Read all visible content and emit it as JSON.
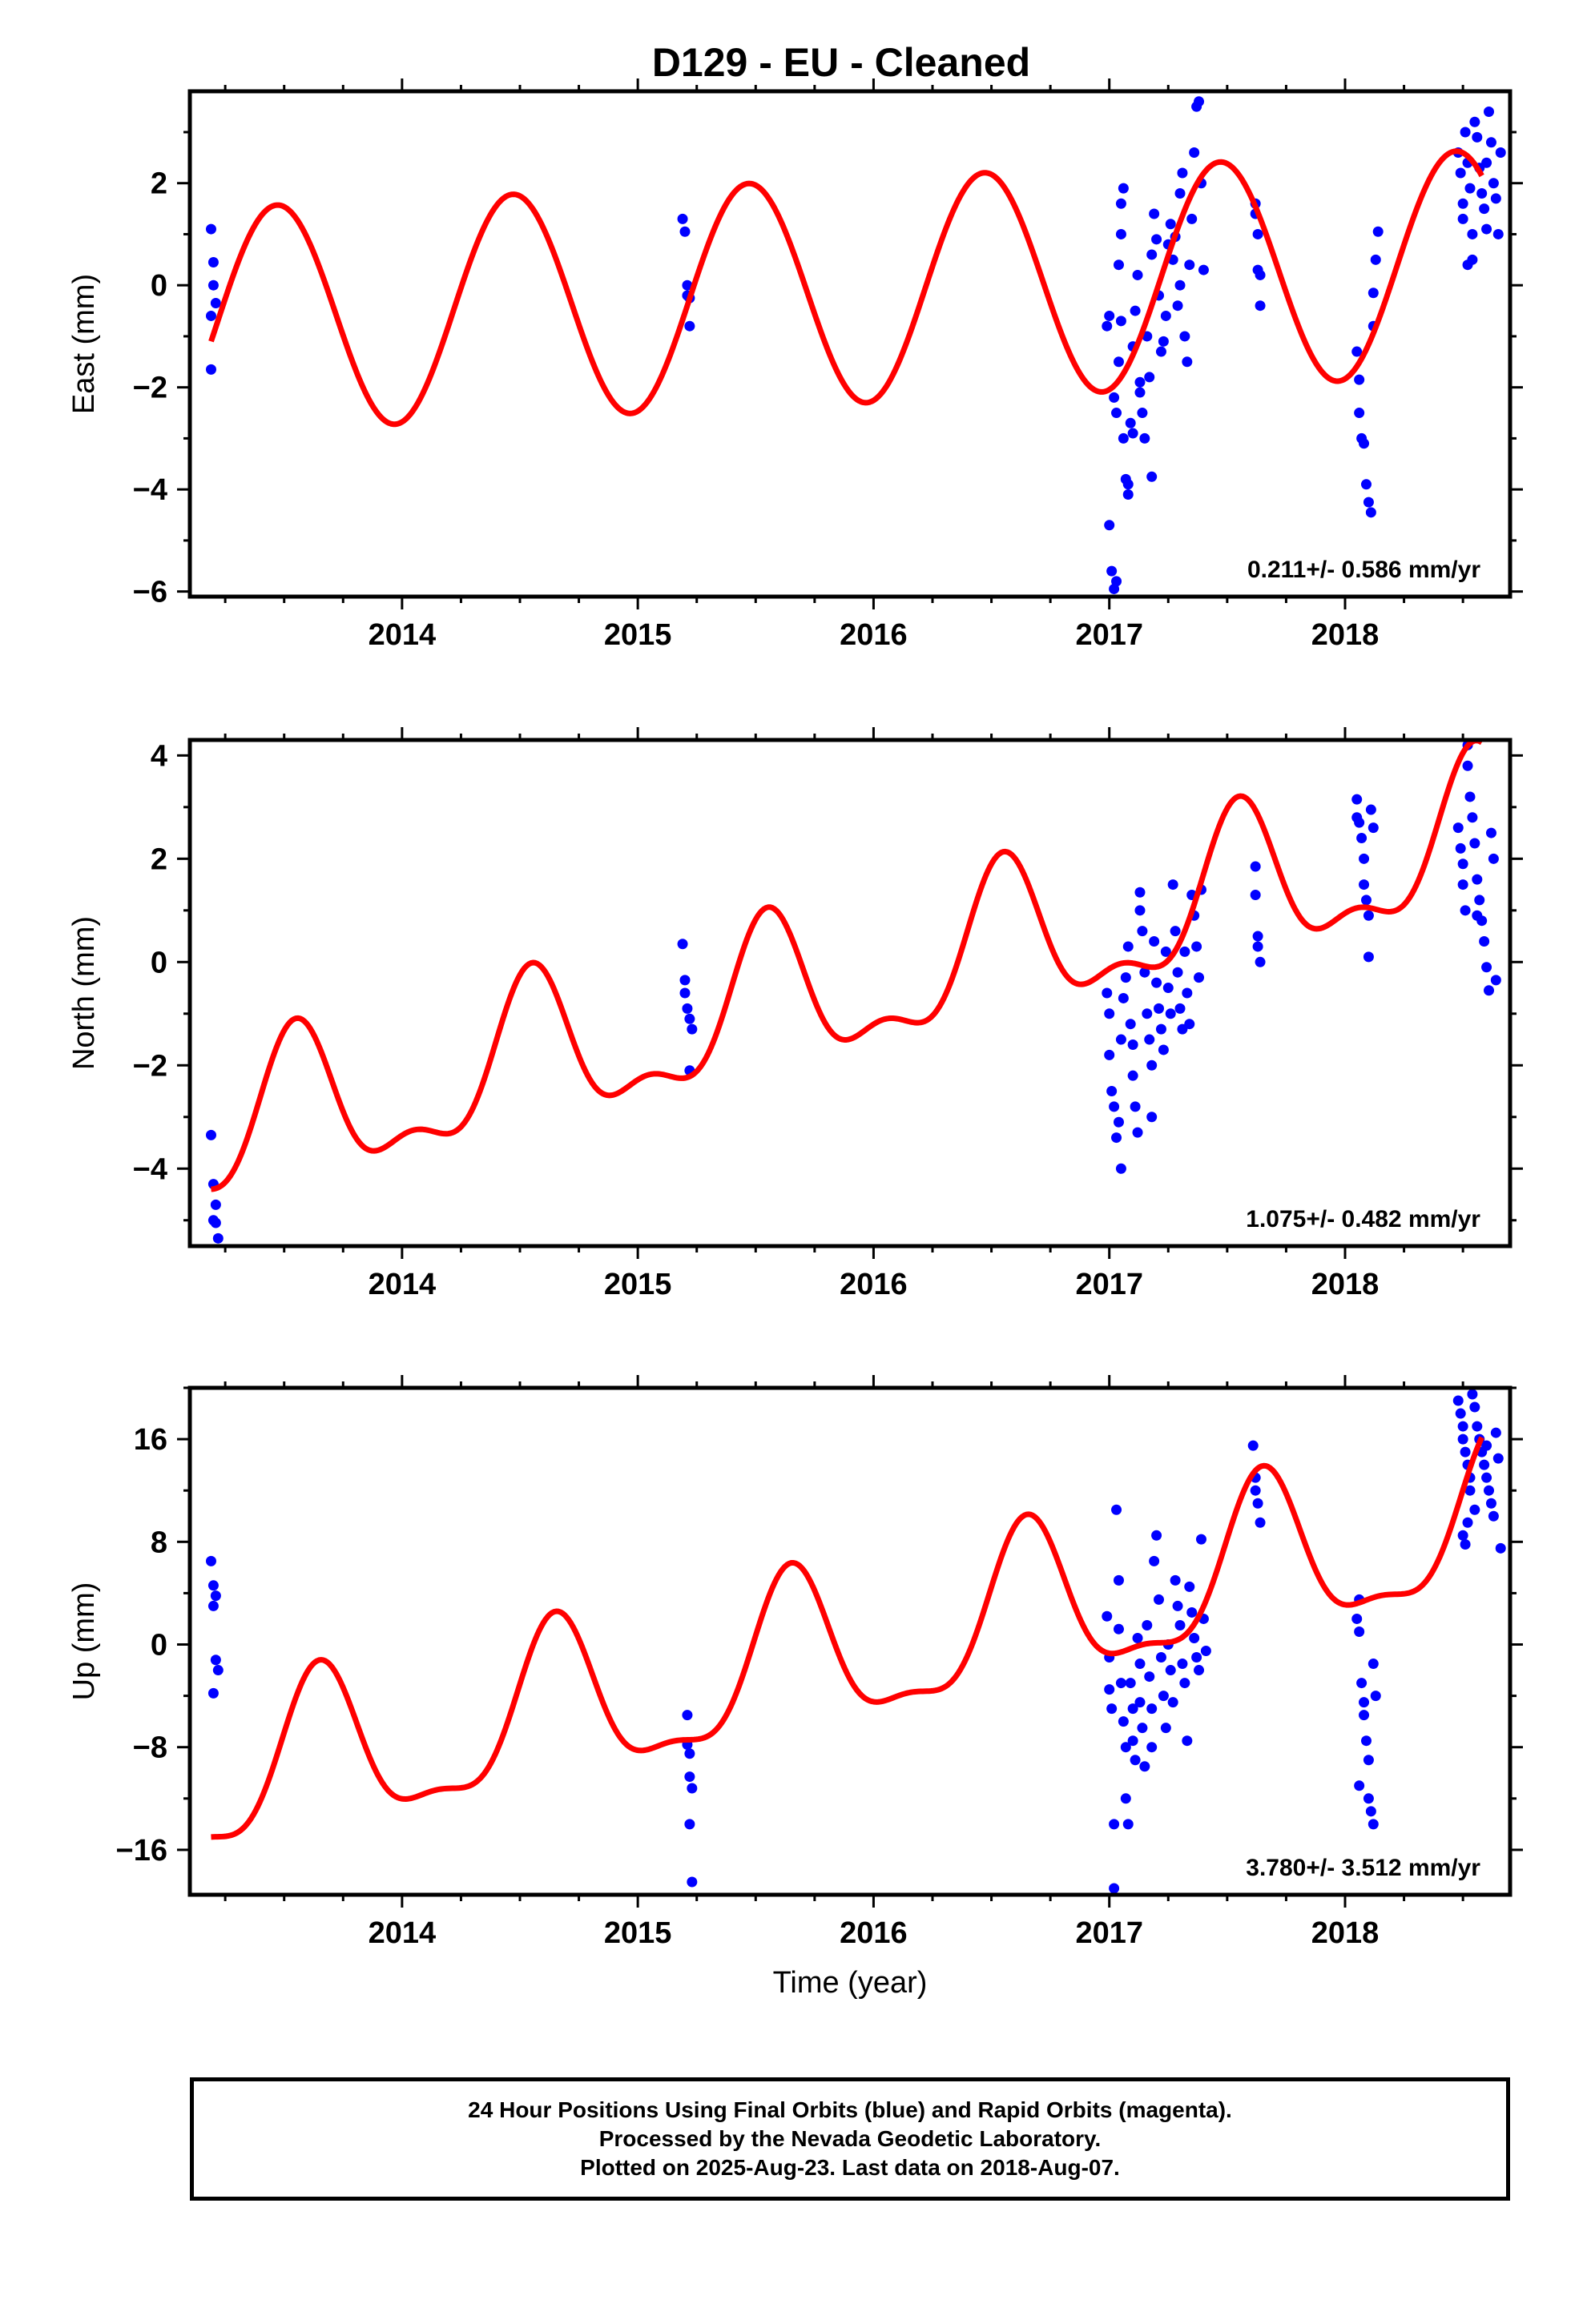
{
  "title": "D129  - EU - Cleaned",
  "xlabel": "Time (year)",
  "colors": {
    "final_orbits": "#0000ff",
    "model": "#ff0000",
    "axes": "#000000"
  },
  "footer": {
    "line1": "24 Hour Positions Using Final Orbits (blue) and Rapid Orbits (magenta).",
    "line2": "Processed by the Nevada Geodetic Laboratory.",
    "line3": "Plotted on 2025-Aug-23. Last data on 2018-Aug-07."
  },
  "chart_data": [
    {
      "type": "scatter",
      "name": "east",
      "ylabel": "East (mm)",
      "rate_label": "0.211+/- 0.586 mm/yr",
      "xlim": [
        2013.1,
        2018.7
      ],
      "ylim": [
        -6.1,
        3.8
      ],
      "xticks": [
        2014,
        2015,
        2016,
        2017,
        2018
      ],
      "yticks": [
        -6,
        -4,
        -2,
        0,
        2
      ],
      "model": {
        "t0": 2013.19,
        "y0": -1.1,
        "rate": 0.211,
        "annual_amp": 2.2,
        "annual_peak": 0.47,
        "semi_amp": 0.0,
        "semi_peak": 0.0,
        "extent": [
          2013.19,
          2018.58
        ]
      },
      "points": [
        [
          2013.19,
          1.1
        ],
        [
          2013.2,
          0.45
        ],
        [
          2013.2,
          0.0
        ],
        [
          2013.21,
          -0.35
        ],
        [
          2013.19,
          -0.6
        ],
        [
          2013.19,
          -1.65
        ],
        [
          2015.19,
          1.3
        ],
        [
          2015.2,
          1.05
        ],
        [
          2015.21,
          0.0
        ],
        [
          2015.21,
          -0.2
        ],
        [
          2015.22,
          -0.25
        ],
        [
          2015.22,
          -0.8
        ],
        [
          2016.99,
          -0.8
        ],
        [
          2017.0,
          -0.6
        ],
        [
          2017.0,
          -4.7
        ],
        [
          2017.01,
          -5.6
        ],
        [
          2017.02,
          -5.95
        ],
        [
          2017.03,
          -5.8
        ],
        [
          2017.02,
          -2.2
        ],
        [
          2017.03,
          -2.5
        ],
        [
          2017.04,
          -1.5
        ],
        [
          2017.05,
          -0.7
        ],
        [
          2017.04,
          0.4
        ],
        [
          2017.05,
          1.0
        ],
        [
          2017.05,
          1.6
        ],
        [
          2017.06,
          1.9
        ],
        [
          2017.06,
          -3.0
        ],
        [
          2017.07,
          -3.8
        ],
        [
          2017.08,
          -4.1
        ],
        [
          2017.08,
          -3.9
        ],
        [
          2017.09,
          -2.7
        ],
        [
          2017.1,
          -2.9
        ],
        [
          2017.1,
          -1.2
        ],
        [
          2017.11,
          -0.5
        ],
        [
          2017.12,
          0.2
        ],
        [
          2017.13,
          -1.9
        ],
        [
          2017.13,
          -2.1
        ],
        [
          2017.14,
          -2.5
        ],
        [
          2017.15,
          -3.0
        ],
        [
          2017.16,
          -1.0
        ],
        [
          2017.17,
          -1.8
        ],
        [
          2017.18,
          -3.75
        ],
        [
          2017.18,
          0.6
        ],
        [
          2017.19,
          1.4
        ],
        [
          2017.2,
          0.9
        ],
        [
          2017.21,
          -0.2
        ],
        [
          2017.22,
          -1.3
        ],
        [
          2017.23,
          -1.1
        ],
        [
          2017.24,
          -0.6
        ],
        [
          2017.25,
          0.8
        ],
        [
          2017.26,
          1.2
        ],
        [
          2017.27,
          0.5
        ],
        [
          2017.28,
          0.95
        ],
        [
          2017.29,
          -0.4
        ],
        [
          2017.3,
          0.0
        ],
        [
          2017.3,
          1.8
        ],
        [
          2017.31,
          2.2
        ],
        [
          2017.32,
          -1.0
        ],
        [
          2017.33,
          -1.5
        ],
        [
          2017.34,
          0.4
        ],
        [
          2017.35,
          1.3
        ],
        [
          2017.36,
          2.6
        ],
        [
          2017.37,
          3.5
        ],
        [
          2017.38,
          3.6
        ],
        [
          2017.39,
          2.0
        ],
        [
          2017.4,
          0.3
        ],
        [
          2017.62,
          1.6
        ],
        [
          2017.62,
          1.4
        ],
        [
          2017.63,
          1.0
        ],
        [
          2017.63,
          0.3
        ],
        [
          2017.64,
          0.2
        ],
        [
          2017.64,
          -0.4
        ],
        [
          2018.05,
          -1.3
        ],
        [
          2018.06,
          -1.85
        ],
        [
          2018.06,
          -2.5
        ],
        [
          2018.07,
          -3.0
        ],
        [
          2018.08,
          -3.1
        ],
        [
          2018.09,
          -3.9
        ],
        [
          2018.1,
          -4.25
        ],
        [
          2018.11,
          -4.45
        ],
        [
          2018.12,
          -0.8
        ],
        [
          2018.12,
          -0.15
        ],
        [
          2018.13,
          0.5
        ],
        [
          2018.14,
          1.05
        ],
        [
          2018.48,
          2.6
        ],
        [
          2018.49,
          2.2
        ],
        [
          2018.5,
          1.6
        ],
        [
          2018.5,
          1.3
        ],
        [
          2018.51,
          3.0
        ],
        [
          2018.52,
          2.4
        ],
        [
          2018.53,
          1.9
        ],
        [
          2018.54,
          1.0
        ],
        [
          2018.54,
          0.5
        ],
        [
          2018.55,
          3.2
        ],
        [
          2018.56,
          2.9
        ],
        [
          2018.57,
          2.3
        ],
        [
          2018.58,
          1.8
        ],
        [
          2018.59,
          1.5
        ],
        [
          2018.6,
          1.1
        ],
        [
          2018.61,
          3.4
        ],
        [
          2018.62,
          2.8
        ],
        [
          2018.63,
          2.0
        ],
        [
          2018.64,
          1.7
        ],
        [
          2018.65,
          1.0
        ],
        [
          2018.66,
          2.6
        ],
        [
          2018.52,
          0.4
        ],
        [
          2018.6,
          2.4
        ]
      ]
    },
    {
      "type": "scatter",
      "name": "north",
      "ylabel": "North (mm)",
      "rate_label": "1.075+/- 0.482 mm/yr",
      "xlim": [
        2013.1,
        2018.7
      ],
      "ylim": [
        -5.5,
        4.3
      ],
      "xticks": [
        2014,
        2015,
        2016,
        2017,
        2018
      ],
      "yticks": [
        -4,
        -2,
        0,
        2,
        4
      ],
      "model": {
        "t0": 2013.19,
        "y0": -4.4,
        "rate": 1.075,
        "annual_amp": 1.35,
        "annual_peak": 0.55,
        "semi_amp": 0.6,
        "semi_peak": 0.05,
        "extent": [
          2013.19,
          2018.58
        ]
      },
      "points": [
        [
          2013.19,
          -3.35
        ],
        [
          2013.2,
          -4.3
        ],
        [
          2013.21,
          -4.7
        ],
        [
          2013.2,
          -5.0
        ],
        [
          2013.21,
          -5.05
        ],
        [
          2013.22,
          -5.35
        ],
        [
          2015.19,
          0.35
        ],
        [
          2015.2,
          -0.35
        ],
        [
          2015.2,
          -0.6
        ],
        [
          2015.21,
          -0.9
        ],
        [
          2015.22,
          -1.1
        ],
        [
          2015.23,
          -1.3
        ],
        [
          2015.22,
          -2.1
        ],
        [
          2016.99,
          -0.6
        ],
        [
          2017.0,
          -1.0
        ],
        [
          2017.0,
          -1.8
        ],
        [
          2017.01,
          -2.5
        ],
        [
          2017.02,
          -2.8
        ],
        [
          2017.03,
          -3.4
        ],
        [
          2017.04,
          -3.1
        ],
        [
          2017.05,
          -4.0
        ],
        [
          2017.05,
          -1.5
        ],
        [
          2017.06,
          -0.7
        ],
        [
          2017.07,
          -0.3
        ],
        [
          2017.08,
          0.3
        ],
        [
          2017.09,
          -1.2
        ],
        [
          2017.1,
          -1.6
        ],
        [
          2017.1,
          -2.2
        ],
        [
          2017.11,
          -2.8
        ],
        [
          2017.12,
          -3.3
        ],
        [
          2017.13,
          1.0
        ],
        [
          2017.13,
          1.35
        ],
        [
          2017.14,
          0.6
        ],
        [
          2017.15,
          -0.2
        ],
        [
          2017.16,
          -1.0
        ],
        [
          2017.17,
          -1.5
        ],
        [
          2017.18,
          -2.0
        ],
        [
          2017.18,
          -3.0
        ],
        [
          2017.19,
          0.4
        ],
        [
          2017.2,
          -0.4
        ],
        [
          2017.21,
          -0.9
        ],
        [
          2017.22,
          -1.3
        ],
        [
          2017.23,
          -1.7
        ],
        [
          2017.24,
          0.2
        ],
        [
          2017.25,
          -0.5
        ],
        [
          2017.26,
          -1.0
        ],
        [
          2017.27,
          1.5
        ],
        [
          2017.28,
          0.6
        ],
        [
          2017.29,
          -0.2
        ],
        [
          2017.3,
          -0.9
        ],
        [
          2017.31,
          -1.3
        ],
        [
          2017.32,
          0.2
        ],
        [
          2017.33,
          -0.6
        ],
        [
          2017.34,
          -1.2
        ],
        [
          2017.35,
          1.3
        ],
        [
          2017.36,
          0.9
        ],
        [
          2017.37,
          0.3
        ],
        [
          2017.38,
          -0.3
        ],
        [
          2017.39,
          1.4
        ],
        [
          2017.62,
          1.85
        ],
        [
          2017.62,
          1.3
        ],
        [
          2017.63,
          0.5
        ],
        [
          2017.63,
          0.3
        ],
        [
          2017.64,
          0.0
        ],
        [
          2018.05,
          3.15
        ],
        [
          2018.05,
          2.8
        ],
        [
          2018.06,
          2.7
        ],
        [
          2018.07,
          2.4
        ],
        [
          2018.08,
          2.0
        ],
        [
          2018.08,
          1.5
        ],
        [
          2018.09,
          1.2
        ],
        [
          2018.1,
          0.9
        ],
        [
          2018.1,
          0.1
        ],
        [
          2018.11,
          2.95
        ],
        [
          2018.12,
          2.6
        ],
        [
          2018.48,
          2.6
        ],
        [
          2018.49,
          2.2
        ],
        [
          2018.5,
          1.9
        ],
        [
          2018.5,
          1.5
        ],
        [
          2018.51,
          1.0
        ],
        [
          2018.52,
          4.2
        ],
        [
          2018.52,
          3.8
        ],
        [
          2018.53,
          3.2
        ],
        [
          2018.54,
          2.8
        ],
        [
          2018.55,
          2.3
        ],
        [
          2018.56,
          1.6
        ],
        [
          2018.57,
          1.2
        ],
        [
          2018.58,
          0.8
        ],
        [
          2018.59,
          0.4
        ],
        [
          2018.6,
          -0.1
        ],
        [
          2018.61,
          -0.55
        ],
        [
          2018.62,
          2.5
        ],
        [
          2018.63,
          2.0
        ],
        [
          2018.64,
          -0.35
        ],
        [
          2018.56,
          0.9
        ]
      ]
    },
    {
      "type": "scatter",
      "name": "up",
      "ylabel": "Up (mm)",
      "rate_label": "3.780+/- 3.512 mm/yr",
      "xlim": [
        2013.1,
        2018.7
      ],
      "ylim": [
        -19.5,
        20.0
      ],
      "xticks": [
        2014,
        2015,
        2016,
        2017,
        2018
      ],
      "yticks": [
        -16,
        -8,
        0,
        8,
        16
      ],
      "model": {
        "t0": 2013.19,
        "y0": -15.0,
        "rate": 3.78,
        "annual_amp": 6.0,
        "annual_peak": 0.65,
        "semi_amp": 2.0,
        "semi_peak": 0.15,
        "extent": [
          2013.19,
          2018.58
        ]
      },
      "points": [
        [
          2013.19,
          6.5
        ],
        [
          2013.2,
          4.6
        ],
        [
          2013.21,
          3.8
        ],
        [
          2013.2,
          3.0
        ],
        [
          2013.21,
          -1.2
        ],
        [
          2013.22,
          -2.0
        ],
        [
          2013.2,
          -3.8
        ],
        [
          2015.21,
          -5.5
        ],
        [
          2015.21,
          -7.8
        ],
        [
          2015.22,
          -8.5
        ],
        [
          2015.22,
          -10.3
        ],
        [
          2015.23,
          -11.2
        ],
        [
          2015.22,
          -14.0
        ],
        [
          2015.23,
          -18.5
        ],
        [
          2016.99,
          2.2
        ],
        [
          2017.0,
          -1.0
        ],
        [
          2017.0,
          -3.5
        ],
        [
          2017.01,
          -5.0
        ],
        [
          2017.02,
          -14.0
        ],
        [
          2017.02,
          -19.0
        ],
        [
          2017.03,
          10.5
        ],
        [
          2017.04,
          5.0
        ],
        [
          2017.04,
          1.2
        ],
        [
          2017.05,
          -3.0
        ],
        [
          2017.06,
          -6.0
        ],
        [
          2017.07,
          -8.0
        ],
        [
          2017.07,
          -12.0
        ],
        [
          2017.08,
          -14.0
        ],
        [
          2017.09,
          -3.0
        ],
        [
          2017.1,
          -5.0
        ],
        [
          2017.1,
          -7.5
        ],
        [
          2017.11,
          -9.0
        ],
        [
          2017.12,
          0.5
        ],
        [
          2017.13,
          -1.5
        ],
        [
          2017.13,
          -4.5
        ],
        [
          2017.14,
          -6.5
        ],
        [
          2017.15,
          -9.5
        ],
        [
          2017.16,
          1.5
        ],
        [
          2017.17,
          -2.5
        ],
        [
          2017.18,
          -5.0
        ],
        [
          2017.18,
          -8.0
        ],
        [
          2017.19,
          6.5
        ],
        [
          2017.2,
          8.5
        ],
        [
          2017.21,
          3.5
        ],
        [
          2017.22,
          -1.0
        ],
        [
          2017.23,
          -4.0
        ],
        [
          2017.24,
          -6.5
        ],
        [
          2017.25,
          0.0
        ],
        [
          2017.26,
          -2.0
        ],
        [
          2017.27,
          -4.5
        ],
        [
          2017.28,
          5.0
        ],
        [
          2017.29,
          3.0
        ],
        [
          2017.3,
          1.5
        ],
        [
          2017.31,
          -1.5
        ],
        [
          2017.32,
          -3.0
        ],
        [
          2017.33,
          -7.5
        ],
        [
          2017.34,
          4.5
        ],
        [
          2017.35,
          2.5
        ],
        [
          2017.36,
          0.5
        ],
        [
          2017.37,
          -1.0
        ],
        [
          2017.38,
          -2.0
        ],
        [
          2017.39,
          8.2
        ],
        [
          2017.4,
          2.0
        ],
        [
          2017.41,
          -0.5
        ],
        [
          2017.61,
          15.5
        ],
        [
          2017.62,
          13.0
        ],
        [
          2017.62,
          12.0
        ],
        [
          2017.63,
          11.0
        ],
        [
          2017.64,
          9.5
        ],
        [
          2018.05,
          2.0
        ],
        [
          2018.06,
          3.5
        ],
        [
          2018.06,
          1.0
        ],
        [
          2018.07,
          -3.0
        ],
        [
          2018.08,
          -4.5
        ],
        [
          2018.08,
          -5.5
        ],
        [
          2018.09,
          -7.5
        ],
        [
          2018.1,
          -9.0
        ],
        [
          2018.1,
          -12.0
        ],
        [
          2018.11,
          -13.0
        ],
        [
          2018.12,
          -14.0
        ],
        [
          2018.12,
          -1.5
        ],
        [
          2018.13,
          -4.0
        ],
        [
          2018.06,
          -11.0
        ],
        [
          2018.48,
          19.0
        ],
        [
          2018.49,
          18.0
        ],
        [
          2018.5,
          17.0
        ],
        [
          2018.5,
          16.0
        ],
        [
          2018.51,
          15.0
        ],
        [
          2018.52,
          14.0
        ],
        [
          2018.53,
          13.0
        ],
        [
          2018.53,
          12.0
        ],
        [
          2018.54,
          19.5
        ],
        [
          2018.55,
          18.5
        ],
        [
          2018.56,
          17.0
        ],
        [
          2018.57,
          16.0
        ],
        [
          2018.58,
          15.0
        ],
        [
          2018.59,
          14.0
        ],
        [
          2018.6,
          13.0
        ],
        [
          2018.61,
          12.0
        ],
        [
          2018.62,
          11.0
        ],
        [
          2018.63,
          10.0
        ],
        [
          2018.64,
          16.5
        ],
        [
          2018.65,
          14.5
        ],
        [
          2018.5,
          8.5
        ],
        [
          2018.51,
          7.8
        ],
        [
          2018.52,
          9.5
        ],
        [
          2018.55,
          10.5
        ],
        [
          2018.66,
          7.5
        ],
        [
          2018.6,
          15.5
        ]
      ]
    }
  ]
}
